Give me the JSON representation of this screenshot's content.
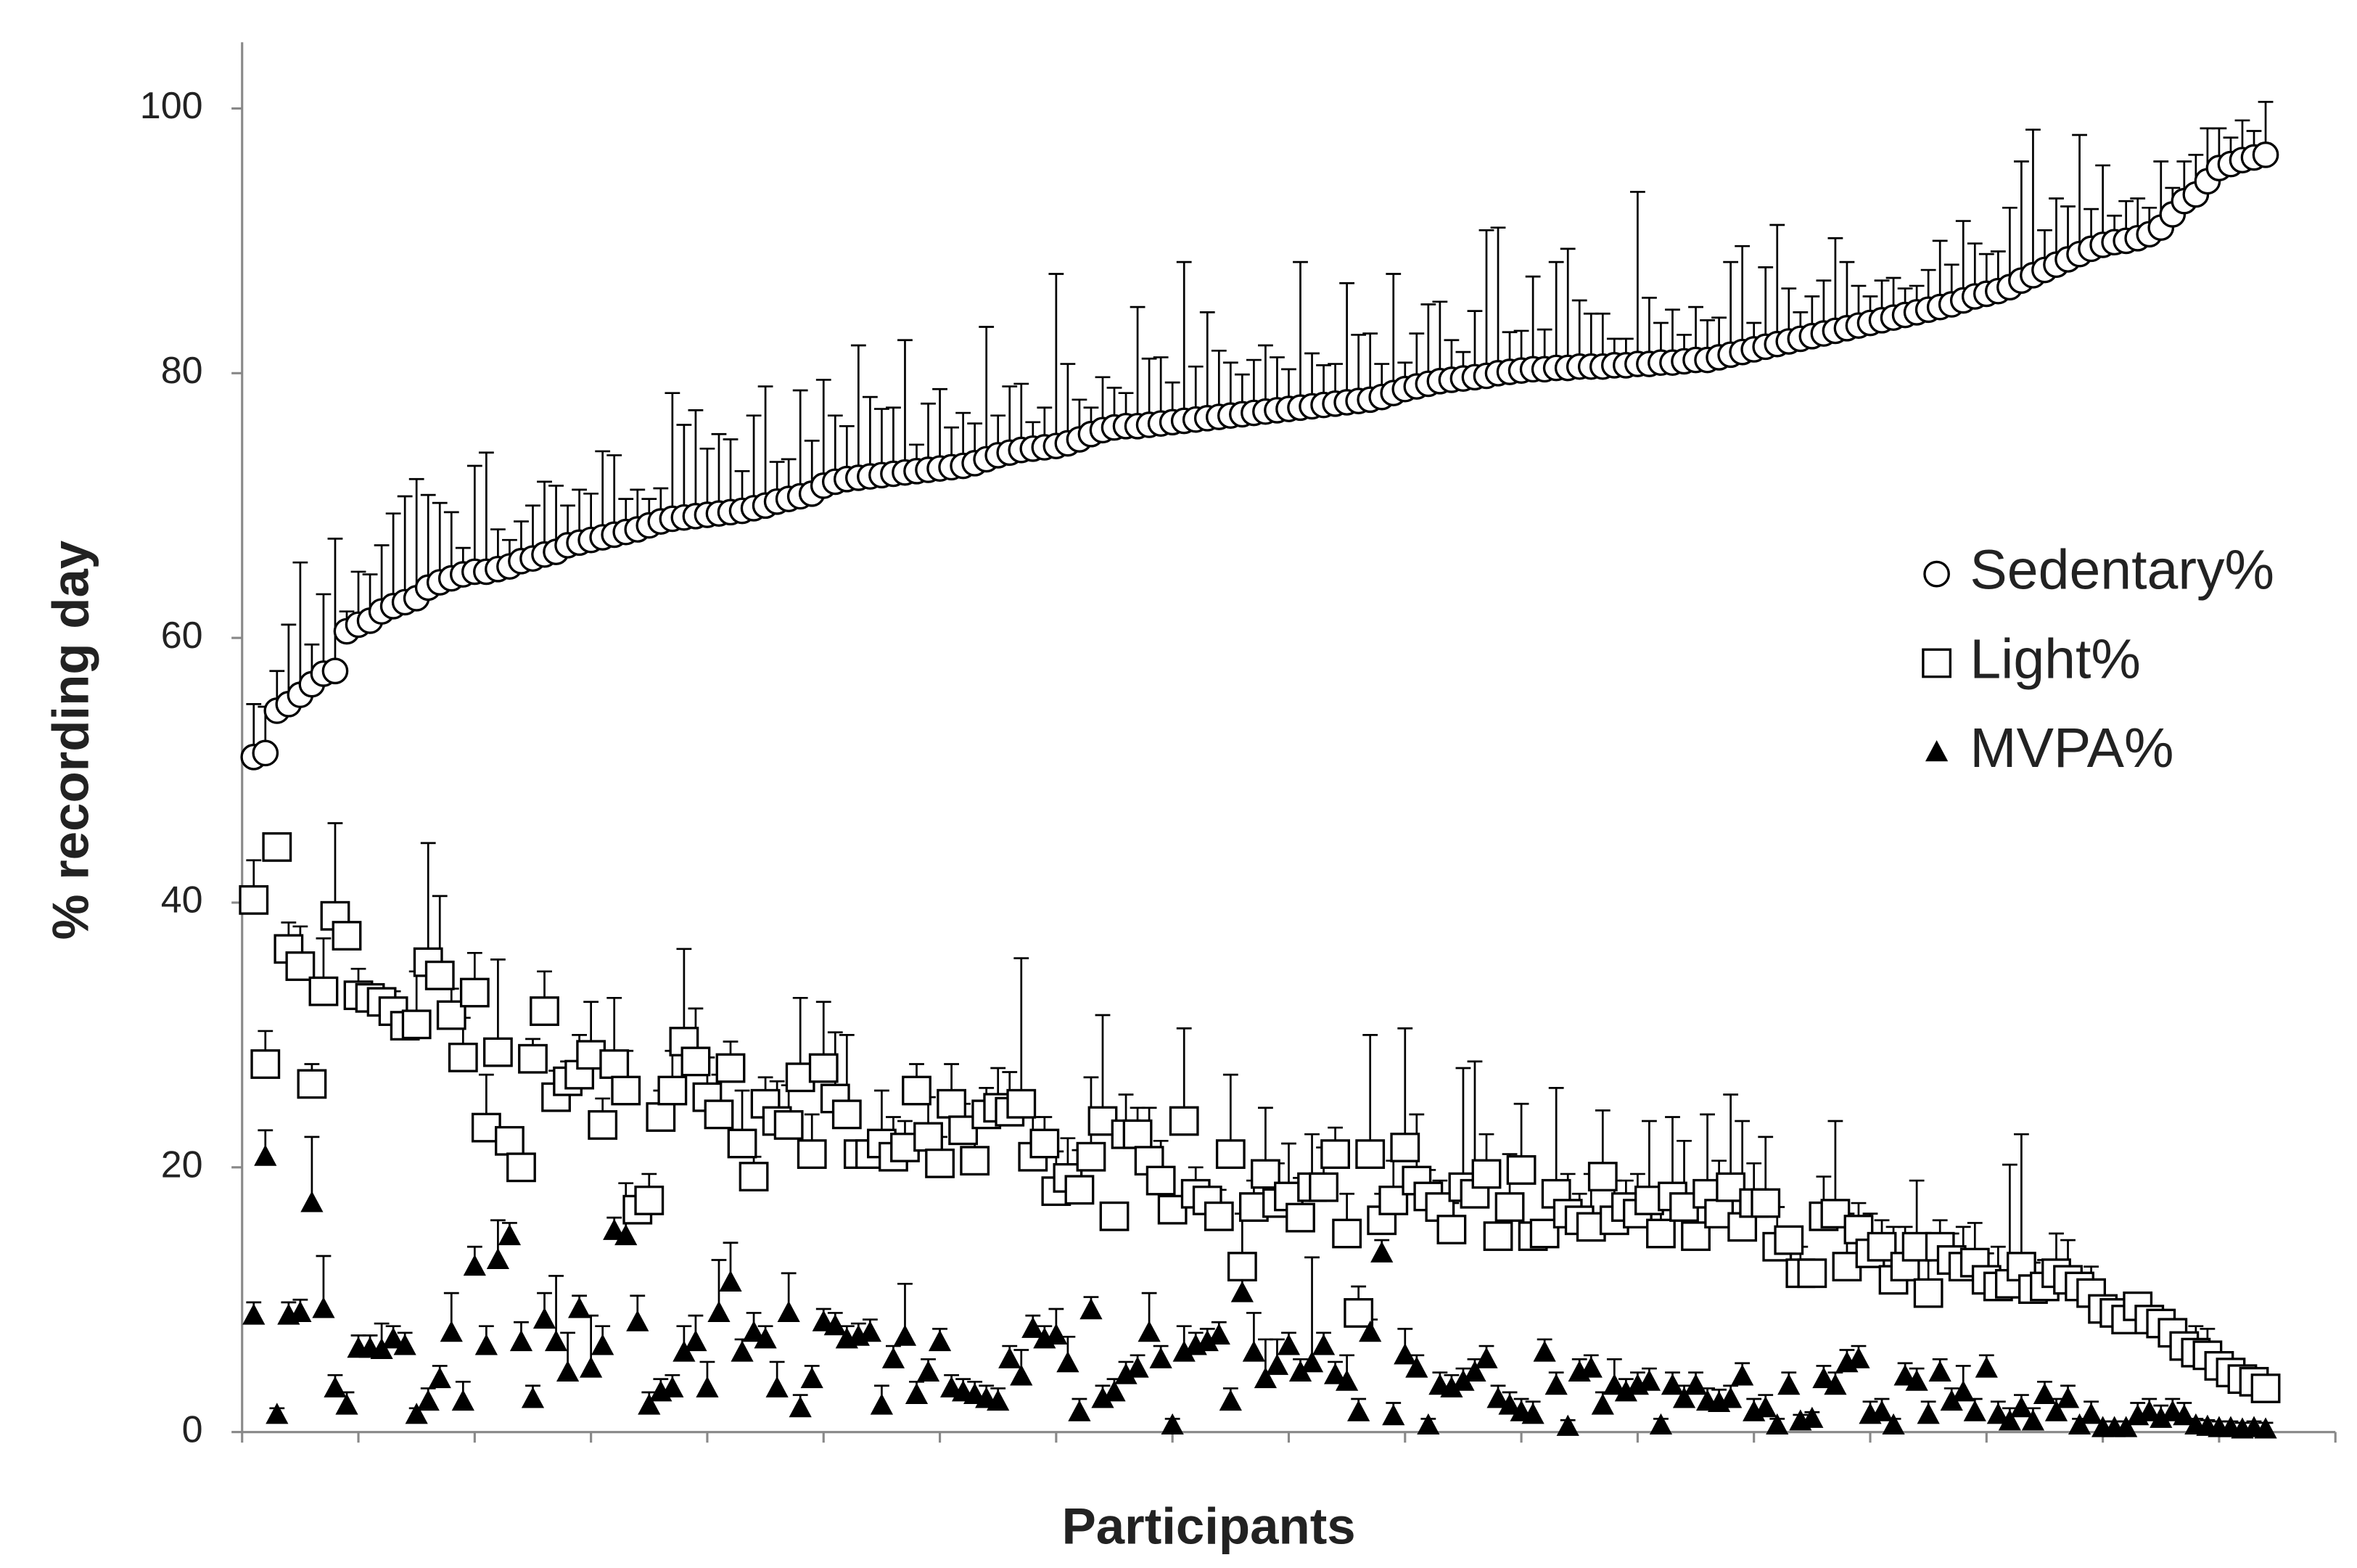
{
  "chart_data": {
    "type": "scatter",
    "x_label": "Participants",
    "y_label": "% recording day",
    "xlim": [
      0,
      180
    ],
    "xticks": [
      0,
      10,
      20,
      30,
      40,
      50,
      60,
      70,
      80,
      90,
      100,
      110,
      120,
      130,
      140,
      150,
      160,
      170,
      180
    ],
    "ylim": [
      0,
      105
    ],
    "yticks": [
      0,
      20,
      40,
      60,
      80,
      100
    ],
    "legend": "right",
    "series": [
      {
        "name": "Sedentary%",
        "marker": "circle",
        "color": "#000000",
        "values": [
          51,
          51.3,
          54.5,
          55,
          55.7,
          56.5,
          57.3,
          57.5,
          60.5,
          61,
          61.3,
          62,
          62.4,
          62.7,
          63,
          63.8,
          64.2,
          64.5,
          64.8,
          65,
          65,
          65.2,
          65.4,
          65.8,
          66,
          66.3,
          66.5,
          67,
          67.2,
          67.4,
          67.6,
          67.8,
          68,
          68.2,
          68.5,
          68.8,
          69,
          69.1,
          69.2,
          69.3,
          69.4,
          69.5,
          69.6,
          69.8,
          70,
          70.3,
          70.5,
          70.7,
          70.9,
          71.5,
          71.8,
          72,
          72.1,
          72.2,
          72.3,
          72.4,
          72.5,
          72.6,
          72.7,
          72.8,
          72.9,
          73,
          73.2,
          73.5,
          73.8,
          74,
          74.2,
          74.3,
          74.4,
          74.5,
          74.7,
          75,
          75.4,
          75.7,
          75.9,
          76,
          76,
          76.1,
          76.2,
          76.3,
          76.4,
          76.5,
          76.6,
          76.7,
          76.8,
          76.9,
          77,
          77.1,
          77.2,
          77.3,
          77.4,
          77.5,
          77.6,
          77.7,
          77.8,
          77.9,
          78,
          78.2,
          78.5,
          78.8,
          79,
          79.2,
          79.4,
          79.5,
          79.6,
          79.7,
          79.8,
          80,
          80.1,
          80.2,
          80.3,
          80.3,
          80.4,
          80.4,
          80.5,
          80.5,
          80.5,
          80.6,
          80.6,
          80.7,
          80.7,
          80.8,
          80.8,
          80.9,
          81,
          81,
          81.2,
          81.4,
          81.6,
          81.8,
          82,
          82.2,
          82.4,
          82.6,
          82.8,
          83,
          83.2,
          83.4,
          83.6,
          83.8,
          84,
          84.2,
          84.4,
          84.6,
          84.8,
          85,
          85.2,
          85.5,
          85.8,
          86,
          86.2,
          86.5,
          87,
          87.4,
          87.8,
          88.2,
          88.6,
          89,
          89.4,
          89.7,
          89.9,
          90,
          90.2,
          90.5,
          91,
          92,
          93,
          93.5,
          94.5,
          95.5,
          95.8,
          96.1,
          96.3,
          96.5
        ],
        "errors": [
          4,
          3.5,
          3,
          6,
          10,
          3,
          6,
          10,
          1.5,
          4,
          3.5,
          5,
          7,
          8,
          9,
          7,
          6,
          5,
          2,
          8,
          9,
          3,
          2,
          3,
          4,
          5.5,
          5,
          3,
          4,
          3.5,
          6.5,
          6,
          2.5,
          3,
          2,
          2.5,
          9.5,
          7,
          8,
          5,
          6,
          5.5,
          3,
          7,
          9,
          3,
          3,
          8,
          4,
          8,
          5,
          4,
          10,
          6,
          5,
          5,
          10,
          2,
          5,
          6,
          3,
          4,
          3,
          10,
          3,
          5,
          5,
          2,
          3,
          13,
          6,
          3,
          2,
          4,
          3,
          2.5,
          9,
          5,
          5,
          3,
          12,
          4,
          8,
          5,
          4,
          3,
          4,
          5,
          4,
          3,
          11,
          4,
          3,
          3,
          9,
          5,
          5,
          2.5,
          9,
          2,
          4,
          6,
          6,
          3,
          2,
          5,
          11,
          11,
          3,
          3,
          7,
          3,
          8,
          9,
          5,
          4,
          4,
          2,
          2,
          13,
          5,
          3,
          4,
          2,
          4,
          3,
          3,
          7,
          8,
          2,
          6,
          9,
          4,
          2,
          3,
          4,
          7,
          5,
          3,
          2,
          3,
          3,
          2,
          2,
          3,
          5,
          3,
          6,
          4,
          3,
          3,
          6,
          9,
          11,
          3,
          5,
          4,
          9,
          3,
          6,
          2,
          3,
          3,
          2,
          5,
          2,
          3,
          3,
          4,
          3,
          2,
          3,
          2,
          4
        ]
      },
      {
        "name": "Light%",
        "marker": "square",
        "color": "#000000",
        "values": [
          40.2,
          27.8,
          44.2,
          36.5,
          35.2,
          26.3,
          33.3,
          39,
          37.5,
          33,
          32.8,
          32.5,
          31.8,
          30.7,
          30.8,
          35.5,
          34.5,
          31.5,
          28.3,
          33.2,
          23,
          28.7,
          22,
          20,
          28.2,
          31.8,
          25.3,
          26.5,
          27,
          28.5,
          23.2,
          27.8,
          25.8,
          16.8,
          17.5,
          23.8,
          25.8,
          29.5,
          28,
          25.3,
          24,
          27.5,
          21.8,
          19.3,
          24.8,
          23.5,
          23.2,
          26.8,
          21,
          27.5,
          25.2,
          24,
          21,
          21,
          21.8,
          20.8,
          21.5,
          25.8,
          22.3,
          20.3,
          24.8,
          22.8,
          20.5,
          24,
          24.5,
          24.2,
          24.8,
          20.8,
          21.8,
          18.2,
          19.2,
          18.3,
          20.8,
          23.5,
          16.3,
          22.5,
          22.5,
          20.5,
          19,
          16.8,
          23.5,
          18,
          17.5,
          16.3,
          21,
          12.5,
          17,
          19.5,
          17.3,
          17.8,
          16.2,
          18.5,
          18.5,
          21,
          15,
          9,
          21,
          16,
          17.5,
          21.5,
          19,
          17.8,
          17,
          15.3,
          18.5,
          18,
          19.5,
          14.8,
          17,
          19.8,
          14.8,
          15,
          18,
          16.5,
          16,
          15.5,
          19.3,
          16,
          17,
          16.5,
          17.5,
          15,
          17.8,
          17,
          14.8,
          18,
          16.5,
          18.5,
          15.5,
          17.3,
          17.3,
          14,
          14.5,
          12,
          12,
          16.3,
          16.5,
          12.5,
          15.3,
          13.5,
          14,
          11.5,
          12.5,
          14,
          10.5,
          14,
          13,
          12.5,
          12.8,
          11.5,
          11,
          11.2,
          12.5,
          10.8,
          11,
          12,
          11.5,
          11,
          10.5,
          9.3,
          9,
          8.5,
          9.5,
          8.5,
          8.2,
          7.5,
          6.5,
          6,
          5.8,
          5,
          4.5,
          4,
          3.8,
          3.3
        ],
        "errors": [
          3,
          2.5,
          1,
          2,
          3,
          1.5,
          4,
          7,
          1,
          2,
          1,
          1,
          1.5,
          1,
          4,
          9,
          6,
          2,
          3,
          3,
          4,
          7,
          1,
          1,
          1.5,
          3,
          2,
          1.5,
          3,
          4,
          2,
          5,
          3,
          1,
          2,
          2,
          3,
          7,
          4,
          3,
          3,
          2,
          4,
          1.5,
          2,
          3,
          3,
          6,
          3,
          5,
          5,
          6,
          1,
          1,
          4,
          3,
          2,
          2,
          3,
          2,
          3,
          2,
          3,
          2,
          3,
          3,
          11,
          3,
          2,
          3,
          3,
          3,
          6,
          8,
          1,
          3,
          2,
          4,
          3,
          1,
          7,
          2,
          1,
          2,
          6,
          4,
          2,
          5,
          3,
          4,
          3,
          4,
          3,
          2,
          3,
          2,
          9,
          2,
          3,
          9,
          5,
          2,
          2,
          2,
          9,
          10,
          3,
          1,
          4,
          5,
          1,
          1,
          8,
          3,
          2,
          4,
          5,
          3,
          2,
          3,
          6,
          2,
          6,
          5,
          3,
          6,
          4,
          7,
          8,
          3,
          5,
          3,
          1,
          2,
          1,
          3,
          7,
          4,
          2,
          3,
          2,
          4,
          3,
          5,
          3,
          2,
          2,
          3,
          3,
          2,
          3,
          9,
          10,
          2,
          2,
          3,
          3,
          1,
          2,
          1,
          1,
          1,
          1,
          1,
          1,
          1,
          1,
          2,
          2,
          1,
          1,
          1,
          1,
          1
        ]
      },
      {
        "name": "MVPA%",
        "marker": "triangle",
        "color": "#000000",
        "values": [
          8.8,
          20.8,
          1.3,
          8.8,
          9,
          17.3,
          9.3,
          3.3,
          2,
          6.3,
          6.3,
          6.2,
          7,
          6.5,
          1.3,
          2.3,
          4,
          7.5,
          2.3,
          12.5,
          6.5,
          13,
          14.8,
          6.8,
          2.5,
          8.5,
          6.8,
          4.5,
          9.3,
          4.8,
          6.5,
          15.2,
          14.8,
          8.3,
          2,
          3,
          3.3,
          6,
          6.8,
          3.3,
          9,
          11.3,
          6,
          7.5,
          7,
          3.3,
          9,
          1.8,
          4,
          8.3,
          8,
          7,
          7.2,
          7.5,
          2,
          5.5,
          7.2,
          2.8,
          4.5,
          6.8,
          3.3,
          3,
          2.8,
          2.5,
          2.3,
          5.5,
          4.2,
          7.8,
          7,
          7.3,
          5.2,
          1.5,
          9.2,
          2.5,
          3,
          4.3,
          4.8,
          7.5,
          5.5,
          0.5,
          6,
          6.5,
          6.8,
          7.3,
          2.3,
          10.5,
          6,
          4,
          5,
          6.5,
          4.5,
          5.2,
          6.5,
          4.3,
          3.8,
          1.5,
          7.5,
          13.5,
          1.2,
          5.8,
          4.8,
          0.5,
          3.5,
          3.3,
          3.8,
          4.5,
          5.5,
          2.5,
          2,
          1.5,
          1.3,
          6,
          3.5,
          0.4,
          4.5,
          4.8,
          2,
          3.5,
          3,
          3.5,
          3.8,
          0.5,
          3.5,
          2.5,
          3.5,
          2.3,
          2.2,
          2.5,
          4.2,
          1.5,
          1.8,
          0.5,
          3.5,
          0.8,
          1,
          4,
          3.5,
          5.2,
          5.5,
          1.3,
          1.5,
          0.5,
          4.2,
          3.8,
          1.3,
          4.5,
          2.3,
          3,
          1.5,
          4.8,
          1.3,
          0.8,
          1.8,
          0.8,
          2.8,
          1.5,
          2.5,
          0.5,
          1.3,
          0.3,
          0.3,
          0.3,
          1.2,
          1.5,
          1,
          1.5,
          1.2,
          0.5,
          0.4,
          0.3,
          0.3,
          0.2,
          0.3,
          0.2
        ],
        "errors": [
          1,
          2,
          0.5,
          1,
          1,
          5,
          4,
          1,
          1,
          1,
          1,
          2,
          1,
          1,
          0.5,
          1,
          1,
          3,
          1.5,
          1.5,
          1.5,
          3,
          1,
          1.5,
          1,
          2,
          5,
          3,
          1,
          4,
          1.5,
          1,
          4,
          2,
          1,
          1,
          1,
          2,
          2,
          2,
          4,
          3,
          1,
          1.5,
          1,
          2,
          3,
          1,
          1,
          1,
          1,
          1,
          1,
          1,
          1.5,
          1,
          4,
          1,
          1,
          1,
          1,
          1,
          1,
          1,
          1,
          1,
          2,
          1,
          1,
          2,
          2,
          1,
          1,
          1,
          1,
          1,
          1,
          3,
          1,
          0.5,
          2,
          1,
          1,
          1,
          1,
          2,
          3,
          3,
          2,
          1,
          1,
          8,
          1,
          1,
          2,
          1,
          1,
          1,
          1,
          2,
          1,
          0.5,
          1,
          1,
          1,
          1,
          1,
          1,
          1,
          1,
          1,
          1,
          1,
          0.5,
          1,
          1,
          1,
          2,
          1,
          1,
          1,
          0.5,
          1,
          1,
          1,
          1,
          1,
          1,
          1,
          1,
          1,
          0.5,
          1,
          0.5,
          0.5,
          1,
          1,
          1,
          1,
          1,
          1,
          0.5,
          1,
          1,
          1,
          1,
          1,
          2,
          1,
          1,
          1,
          1,
          1,
          1,
          1,
          1,
          1,
          0.5,
          1,
          0.5,
          0.5,
          0.5,
          1,
          1,
          1,
          1,
          1,
          0.5,
          0.5,
          0.5,
          0.5,
          0.5,
          0.5,
          0.5
        ]
      }
    ]
  }
}
